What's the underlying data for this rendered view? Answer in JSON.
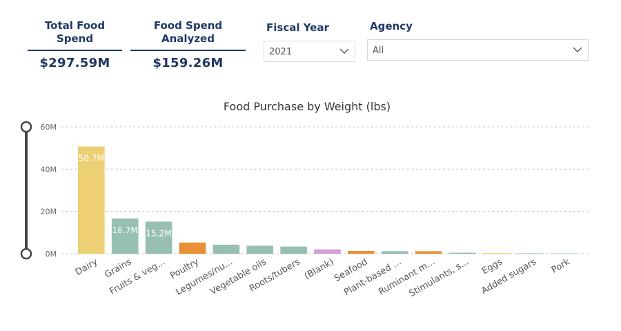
{
  "kpis": [
    {
      "title_line1": "Total Food",
      "title_line2": "Spend",
      "value": "$297.59M"
    },
    {
      "title_line1": "Food Spend",
      "title_line2": "Analyzed",
      "value": "$159.26M"
    }
  ],
  "filters": {
    "fiscal_year": {
      "label": "Fiscal Year",
      "value": "2021"
    },
    "agency": {
      "label": "Agency",
      "value": "All"
    }
  },
  "colors": {
    "dairy": "#ecd073",
    "grains": "#97bfb4",
    "poultry": "#e88f37",
    "blank": "#d2a2d2",
    "slider": "#444444",
    "grid": "#c8c8c8"
  },
  "chart_data": {
    "type": "bar",
    "title": "Food Purchase by Weight (lbs)",
    "xlabel": "",
    "ylabel": "",
    "ylim": [
      0,
      60000000
    ],
    "yticks": [
      {
        "value": 0,
        "label": "0M"
      },
      {
        "value": 20000000,
        "label": "20M"
      },
      {
        "value": 40000000,
        "label": "40M"
      },
      {
        "value": 60000000,
        "label": "60M"
      }
    ],
    "grid": true,
    "categories": [
      "Dairy",
      "Grains",
      "Fruits & veg...",
      "Poultry",
      "Legumes/nu...",
      "Vegetable oils",
      "Roots/tubers",
      "(Blank)",
      "Seafood",
      "Plant-based ...",
      "Ruminant m...",
      "Stimulants, s...",
      "Eggs",
      "Added sugars",
      "Pork"
    ],
    "values": [
      50700000,
      16700000,
      15200000,
      5300000,
      4300000,
      3800000,
      3400000,
      2100000,
      1300000,
      1200000,
      1200000,
      500000,
      300000,
      200000,
      100000
    ],
    "data_labels": [
      "50.7M",
      "16.7M",
      "15.2M",
      "",
      "",
      "",
      "",
      "",
      "",
      "",
      "",
      "",
      "",
      "",
      ""
    ],
    "bar_colors": [
      "#ecd073",
      "#97bfb4",
      "#97bfb4",
      "#e88f37",
      "#97bfb4",
      "#97bfb4",
      "#97bfb4",
      "#d2a2d2",
      "#e88f37",
      "#97bfb4",
      "#e88f37",
      "#97bfb4",
      "#ecd073",
      "#97bfb4",
      "#97bfb4"
    ]
  }
}
